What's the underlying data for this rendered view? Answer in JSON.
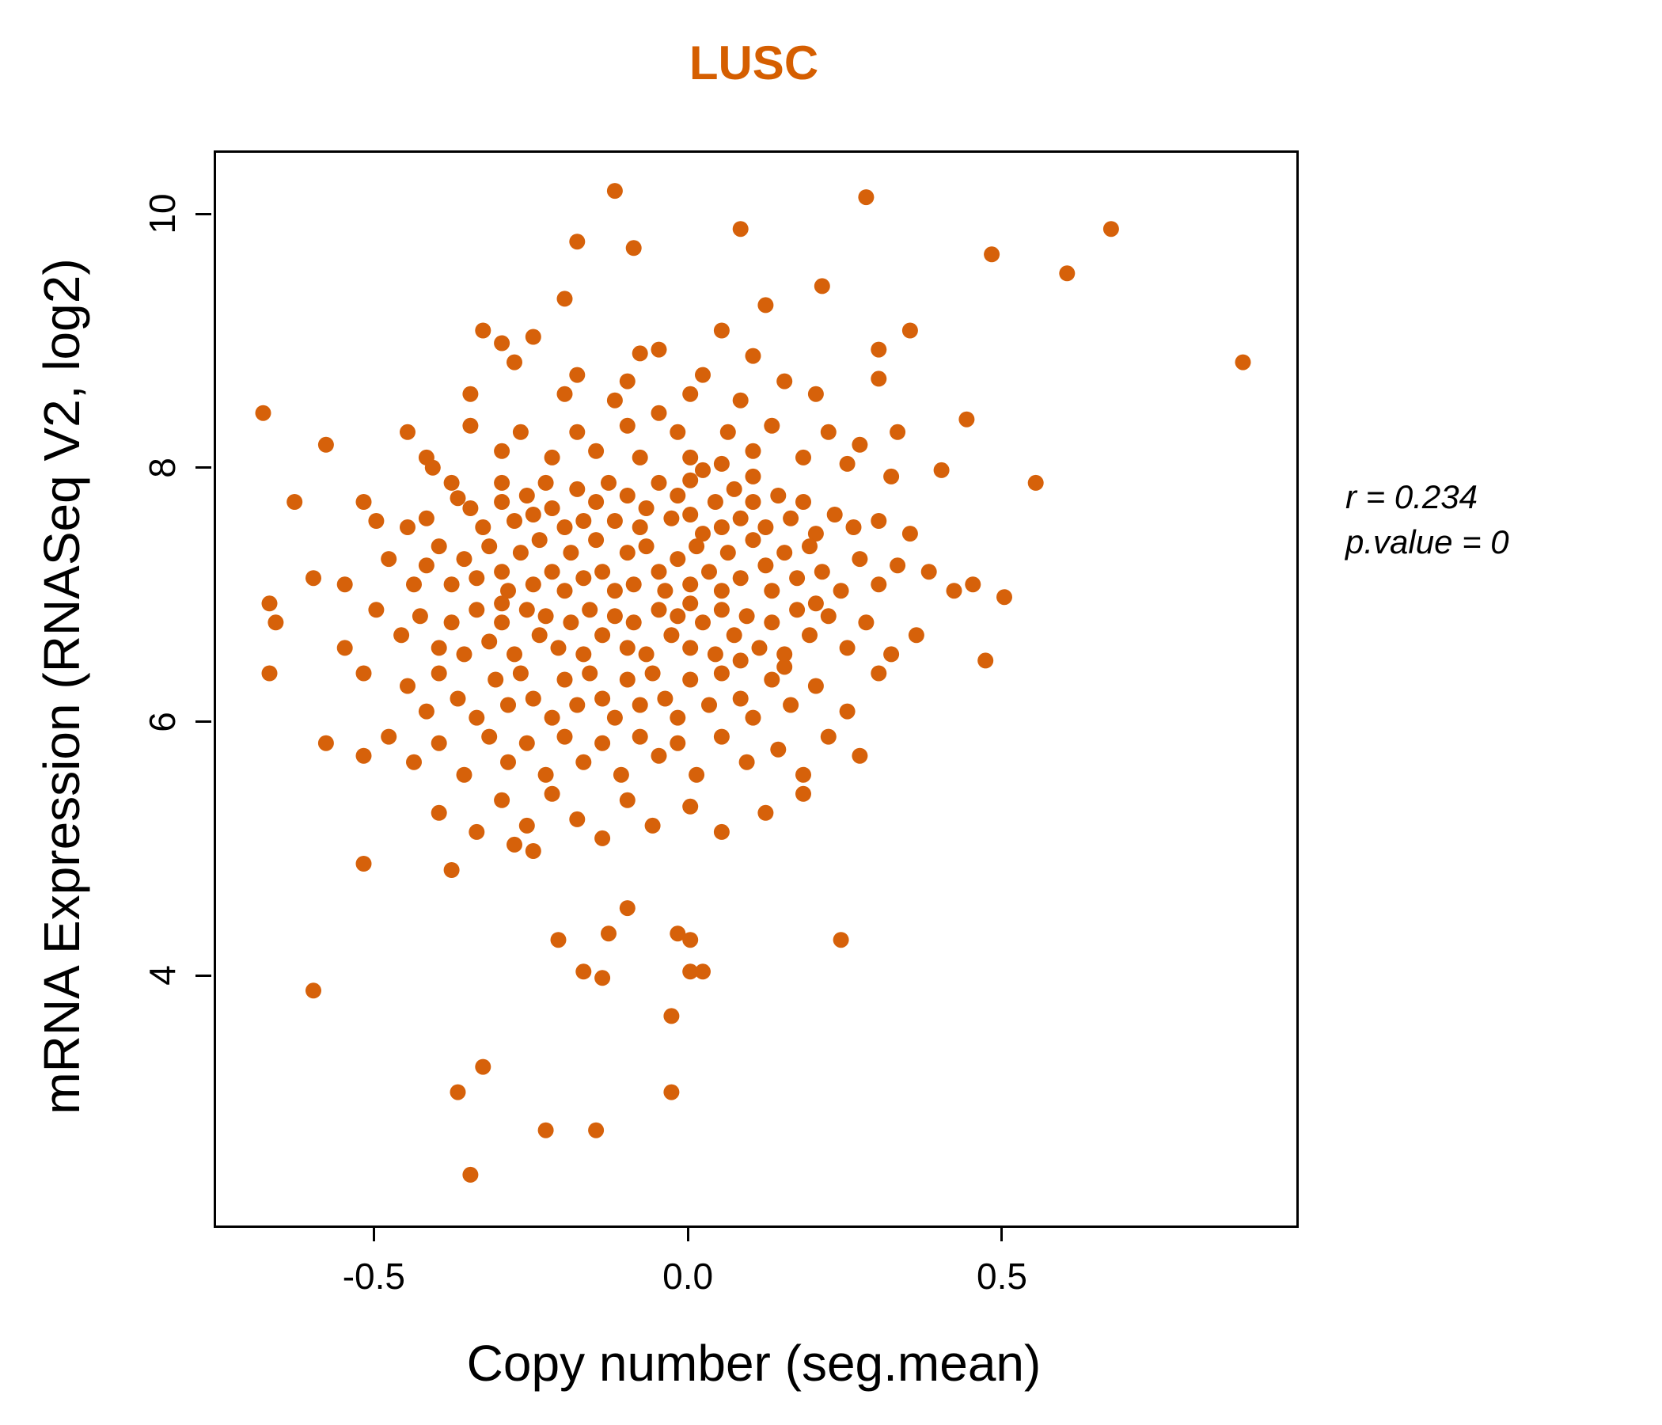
{
  "chart_data": {
    "type": "scatter",
    "title": "LUSC",
    "xlabel": "Copy number (seg.mean)",
    "ylabel": "mRNA Expression (RNASeq V2, log2)",
    "r_text": "r = 0.234",
    "p_text": "p.value = 0",
    "correlation_r": 0.234,
    "p_value": 0,
    "xlim": [
      -0.755,
      0.965
    ],
    "ylim": [
      2.05,
      10.5
    ],
    "x_ticks": [
      -0.5,
      0.0,
      0.5
    ],
    "y_ticks": [
      4,
      6,
      8,
      10
    ],
    "grid": false,
    "legend": "none",
    "point_color": "#D6610A",
    "title_color": "#D55E00",
    "point_radius_px": 10,
    "points": [
      [
        -0.12,
        10.2
      ],
      [
        0.28,
        10.15
      ],
      [
        0.67,
        9.9
      ],
      [
        0.08,
        9.9
      ],
      [
        -0.18,
        9.8
      ],
      [
        -0.09,
        9.75
      ],
      [
        0.48,
        9.7
      ],
      [
        0.6,
        9.55
      ],
      [
        0.21,
        9.45
      ],
      [
        -0.2,
        9.35
      ],
      [
        0.12,
        9.3
      ],
      [
        -0.33,
        9.1
      ],
      [
        -0.25,
        9.05
      ],
      [
        0.05,
        9.1
      ],
      [
        0.35,
        9.1
      ],
      [
        -0.3,
        9.0
      ],
      [
        0.3,
        8.95
      ],
      [
        -0.05,
        8.95
      ],
      [
        0.88,
        8.85
      ],
      [
        0.1,
        8.9
      ],
      [
        -0.08,
        8.92
      ],
      [
        -0.28,
        8.85
      ],
      [
        -0.18,
        8.75
      ],
      [
        -0.1,
        8.7
      ],
      [
        0.02,
        8.75
      ],
      [
        0.15,
        8.7
      ],
      [
        0.3,
        8.72
      ],
      [
        -0.35,
        8.6
      ],
      [
        -0.2,
        8.6
      ],
      [
        -0.12,
        8.55
      ],
      [
        0.0,
        8.6
      ],
      [
        0.08,
        8.55
      ],
      [
        0.2,
        8.6
      ],
      [
        0.44,
        8.4
      ],
      [
        -0.68,
        8.45
      ],
      [
        -0.45,
        8.3
      ],
      [
        -0.35,
        8.35
      ],
      [
        -0.27,
        8.3
      ],
      [
        -0.18,
        8.3
      ],
      [
        -0.1,
        8.35
      ],
      [
        -0.02,
        8.3
      ],
      [
        0.06,
        8.3
      ],
      [
        0.13,
        8.35
      ],
      [
        0.22,
        8.3
      ],
      [
        0.33,
        8.3
      ],
      [
        -0.58,
        8.2
      ],
      [
        -0.42,
        8.1
      ],
      [
        -0.3,
        8.15
      ],
      [
        -0.22,
        8.1
      ],
      [
        -0.15,
        8.15
      ],
      [
        -0.08,
        8.1
      ],
      [
        0.0,
        8.1
      ],
      [
        0.05,
        8.05
      ],
      [
        0.1,
        8.15
      ],
      [
        0.18,
        8.1
      ],
      [
        0.25,
        8.05
      ],
      [
        0.4,
        8.0
      ],
      [
        0.27,
        8.2
      ],
      [
        -0.05,
        8.45
      ],
      [
        -0.41,
        8.02
      ],
      [
        0.02,
        8.0
      ],
      [
        0.55,
        7.9
      ],
      [
        0.32,
        7.95
      ],
      [
        -0.63,
        7.75
      ],
      [
        -0.52,
        7.75
      ],
      [
        -0.5,
        7.6
      ],
      [
        -0.45,
        7.55
      ],
      [
        -0.42,
        7.62
      ],
      [
        -0.38,
        7.9
      ],
      [
        -0.37,
        7.78
      ],
      [
        -0.35,
        7.7
      ],
      [
        -0.33,
        7.55
      ],
      [
        -0.3,
        7.9
      ],
      [
        -0.3,
        7.75
      ],
      [
        -0.28,
        7.6
      ],
      [
        -0.26,
        7.8
      ],
      [
        -0.25,
        7.65
      ],
      [
        -0.23,
        7.9
      ],
      [
        -0.22,
        7.7
      ],
      [
        -0.2,
        7.55
      ],
      [
        -0.18,
        7.85
      ],
      [
        -0.17,
        7.6
      ],
      [
        -0.15,
        7.75
      ],
      [
        -0.13,
        7.9
      ],
      [
        -0.12,
        7.6
      ],
      [
        -0.1,
        7.8
      ],
      [
        -0.08,
        7.55
      ],
      [
        -0.07,
        7.7
      ],
      [
        -0.05,
        7.9
      ],
      [
        -0.03,
        7.62
      ],
      [
        -0.02,
        7.8
      ],
      [
        0.0,
        7.65
      ],
      [
        0.02,
        7.5
      ],
      [
        0.04,
        7.75
      ],
      [
        0.05,
        7.55
      ],
      [
        0.07,
        7.85
      ],
      [
        0.08,
        7.62
      ],
      [
        0.1,
        7.75
      ],
      [
        0.12,
        7.55
      ],
      [
        0.14,
        7.8
      ],
      [
        0.16,
        7.62
      ],
      [
        0.18,
        7.75
      ],
      [
        0.2,
        7.5
      ],
      [
        0.23,
        7.65
      ],
      [
        0.26,
        7.55
      ],
      [
        0.3,
        7.6
      ],
      [
        0.35,
        7.5
      ],
      [
        0.1,
        7.95
      ],
      [
        0.0,
        7.92
      ],
      [
        -0.6,
        7.15
      ],
      [
        -0.55,
        7.1
      ],
      [
        -0.48,
        7.3
      ],
      [
        -0.44,
        7.1
      ],
      [
        -0.42,
        7.25
      ],
      [
        -0.4,
        7.4
      ],
      [
        -0.38,
        7.1
      ],
      [
        -0.36,
        7.3
      ],
      [
        -0.34,
        7.15
      ],
      [
        -0.32,
        7.4
      ],
      [
        -0.3,
        7.2
      ],
      [
        -0.29,
        7.05
      ],
      [
        -0.27,
        7.35
      ],
      [
        -0.25,
        7.1
      ],
      [
        -0.24,
        7.45
      ],
      [
        -0.22,
        7.2
      ],
      [
        -0.2,
        7.05
      ],
      [
        -0.19,
        7.35
      ],
      [
        -0.17,
        7.15
      ],
      [
        -0.15,
        7.45
      ],
      [
        -0.14,
        7.2
      ],
      [
        -0.12,
        7.05
      ],
      [
        -0.1,
        7.35
      ],
      [
        -0.09,
        7.1
      ],
      [
        -0.07,
        7.4
      ],
      [
        -0.05,
        7.2
      ],
      [
        -0.04,
        7.05
      ],
      [
        -0.02,
        7.3
      ],
      [
        0.0,
        7.1
      ],
      [
        0.01,
        7.4
      ],
      [
        0.03,
        7.2
      ],
      [
        0.05,
        7.05
      ],
      [
        0.06,
        7.35
      ],
      [
        0.08,
        7.15
      ],
      [
        0.1,
        7.45
      ],
      [
        0.12,
        7.25
      ],
      [
        0.13,
        7.05
      ],
      [
        0.15,
        7.35
      ],
      [
        0.17,
        7.15
      ],
      [
        0.19,
        7.4
      ],
      [
        0.21,
        7.2
      ],
      [
        0.24,
        7.05
      ],
      [
        0.27,
        7.3
      ],
      [
        0.3,
        7.1
      ],
      [
        0.33,
        7.25
      ],
      [
        0.38,
        7.2
      ],
      [
        0.42,
        7.05
      ],
      [
        0.45,
        7.1
      ],
      [
        -0.67,
        6.95
      ],
      [
        0.5,
        7.0
      ],
      [
        -0.66,
        6.8
      ],
      [
        -0.55,
        6.6
      ],
      [
        -0.5,
        6.9
      ],
      [
        -0.46,
        6.7
      ],
      [
        -0.43,
        6.85
      ],
      [
        -0.4,
        6.6
      ],
      [
        -0.38,
        6.8
      ],
      [
        -0.36,
        6.55
      ],
      [
        -0.34,
        6.9
      ],
      [
        -0.32,
        6.65
      ],
      [
        -0.3,
        6.95
      ],
      [
        -0.28,
        6.55
      ],
      [
        -0.26,
        6.9
      ],
      [
        -0.24,
        6.7
      ],
      [
        -0.23,
        6.85
      ],
      [
        -0.21,
        6.6
      ],
      [
        -0.19,
        6.8
      ],
      [
        -0.17,
        6.55
      ],
      [
        -0.16,
        6.9
      ],
      [
        -0.14,
        6.7
      ],
      [
        -0.12,
        6.85
      ],
      [
        -0.1,
        6.6
      ],
      [
        -0.09,
        6.8
      ],
      [
        -0.07,
        6.55
      ],
      [
        -0.05,
        6.9
      ],
      [
        -0.03,
        6.7
      ],
      [
        -0.02,
        6.85
      ],
      [
        0.0,
        6.95
      ],
      [
        0.0,
        6.6
      ],
      [
        0.02,
        6.8
      ],
      [
        0.04,
        6.55
      ],
      [
        0.05,
        6.9
      ],
      [
        0.07,
        6.7
      ],
      [
        0.08,
        6.5
      ],
      [
        0.09,
        6.85
      ],
      [
        0.11,
        6.6
      ],
      [
        0.13,
        6.8
      ],
      [
        0.15,
        6.55
      ],
      [
        0.17,
        6.9
      ],
      [
        0.19,
        6.7
      ],
      [
        0.2,
        6.95
      ],
      [
        0.22,
        6.85
      ],
      [
        0.25,
        6.6
      ],
      [
        0.28,
        6.8
      ],
      [
        0.32,
        6.55
      ],
      [
        0.36,
        6.7
      ],
      [
        0.47,
        6.5
      ],
      [
        -0.3,
        6.8
      ],
      [
        -0.67,
        6.4
      ],
      [
        -0.52,
        6.4
      ],
      [
        -0.45,
        6.3
      ],
      [
        -0.42,
        6.1
      ],
      [
        -0.4,
        6.4
      ],
      [
        -0.37,
        6.2
      ],
      [
        -0.34,
        6.05
      ],
      [
        -0.31,
        6.35
      ],
      [
        -0.29,
        6.15
      ],
      [
        -0.27,
        6.4
      ],
      [
        -0.25,
        6.2
      ],
      [
        -0.22,
        6.05
      ],
      [
        -0.2,
        6.35
      ],
      [
        -0.18,
        6.15
      ],
      [
        -0.16,
        6.4
      ],
      [
        -0.14,
        6.2
      ],
      [
        -0.12,
        6.05
      ],
      [
        -0.1,
        6.35
      ],
      [
        -0.08,
        6.15
      ],
      [
        -0.06,
        6.4
      ],
      [
        -0.04,
        6.2
      ],
      [
        -0.02,
        6.05
      ],
      [
        0.0,
        6.35
      ],
      [
        0.03,
        6.15
      ],
      [
        0.05,
        6.4
      ],
      [
        0.08,
        6.2
      ],
      [
        0.1,
        6.05
      ],
      [
        0.13,
        6.35
      ],
      [
        0.16,
        6.15
      ],
      [
        0.2,
        6.3
      ],
      [
        0.25,
        6.1
      ],
      [
        0.3,
        6.4
      ],
      [
        0.15,
        6.45
      ],
      [
        -0.58,
        5.85
      ],
      [
        -0.52,
        5.75
      ],
      [
        -0.48,
        5.9
      ],
      [
        -0.44,
        5.7
      ],
      [
        -0.4,
        5.85
      ],
      [
        -0.36,
        5.6
      ],
      [
        -0.32,
        5.9
      ],
      [
        -0.29,
        5.7
      ],
      [
        -0.26,
        5.85
      ],
      [
        -0.23,
        5.6
      ],
      [
        -0.2,
        5.9
      ],
      [
        -0.17,
        5.7
      ],
      [
        -0.14,
        5.85
      ],
      [
        -0.11,
        5.6
      ],
      [
        -0.08,
        5.9
      ],
      [
        -0.05,
        5.75
      ],
      [
        -0.02,
        5.85
      ],
      [
        0.01,
        5.6
      ],
      [
        0.05,
        5.9
      ],
      [
        0.09,
        5.7
      ],
      [
        0.14,
        5.8
      ],
      [
        0.18,
        5.6
      ],
      [
        0.22,
        5.9
      ],
      [
        0.27,
        5.75
      ],
      [
        -0.4,
        5.3
      ],
      [
        -0.34,
        5.15
      ],
      [
        -0.3,
        5.4
      ],
      [
        -0.28,
        5.05
      ],
      [
        -0.26,
        5.2
      ],
      [
        -0.25,
        5.0
      ],
      [
        -0.22,
        5.45
      ],
      [
        -0.18,
        5.25
      ],
      [
        -0.14,
        5.1
      ],
      [
        -0.1,
        5.4
      ],
      [
        -0.06,
        5.2
      ],
      [
        0.0,
        5.35
      ],
      [
        0.05,
        5.15
      ],
      [
        0.12,
        5.3
      ],
      [
        0.18,
        5.45
      ],
      [
        -0.52,
        4.9
      ],
      [
        -0.38,
        4.85
      ],
      [
        -0.1,
        4.55
      ],
      [
        -0.21,
        4.3
      ],
      [
        -0.13,
        4.35
      ],
      [
        -0.02,
        4.35
      ],
      [
        0.0,
        4.3
      ],
      [
        -0.17,
        4.05
      ],
      [
        -0.14,
        4.0
      ],
      [
        0.0,
        4.05
      ],
      [
        0.02,
        4.05
      ],
      [
        0.24,
        4.3
      ],
      [
        -0.6,
        3.9
      ],
      [
        -0.03,
        3.7
      ],
      [
        -0.33,
        3.3
      ],
      [
        -0.37,
        3.1
      ],
      [
        -0.03,
        3.1
      ],
      [
        -0.23,
        2.8
      ],
      [
        -0.15,
        2.8
      ],
      [
        -0.35,
        2.45
      ]
    ]
  }
}
